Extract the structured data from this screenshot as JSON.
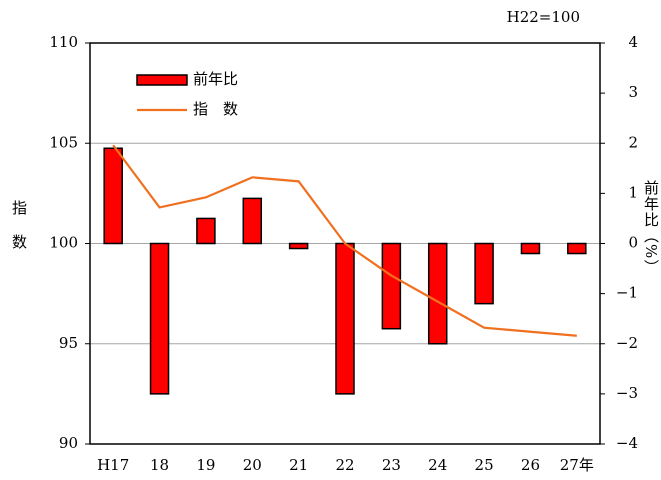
{
  "chart_data": {
    "type": "bar_line",
    "note": "H22=100",
    "y_label": "指　数",
    "y2_label": "前年比（%）",
    "categories": [
      "H17",
      "18",
      "19",
      "20",
      "21",
      "22",
      "23",
      "24",
      "25",
      "26",
      "27年"
    ],
    "series": [
      {
        "name": "前年比",
        "type": "bar",
        "axis": "y2",
        "color": "#ff0000",
        "values": [
          1.9,
          -3.0,
          0.5,
          0.9,
          -0.1,
          -3.0,
          -1.7,
          -2.0,
          -1.2,
          -0.2,
          -0.2
        ]
      },
      {
        "name": "指　数",
        "type": "line",
        "axis": "y",
        "color": "#f07020",
        "values": [
          104.9,
          101.8,
          102.3,
          103.3,
          103.1,
          100.0,
          98.4,
          97.1,
          95.8,
          95.6,
          95.4
        ]
      }
    ],
    "ylim": [
      90,
      110
    ],
    "yticks": [
      90,
      95,
      100,
      105,
      110
    ],
    "y2lim": [
      -4,
      4
    ],
    "y2ticks": [
      {
        "value": -4,
        "label": "−4"
      },
      {
        "value": -3,
        "label": "−3"
      },
      {
        "value": -2,
        "label": "−2"
      },
      {
        "value": -1,
        "label": "−1"
      },
      0,
      1,
      2,
      3,
      4
    ],
    "grid": true,
    "legend": "upper left"
  }
}
